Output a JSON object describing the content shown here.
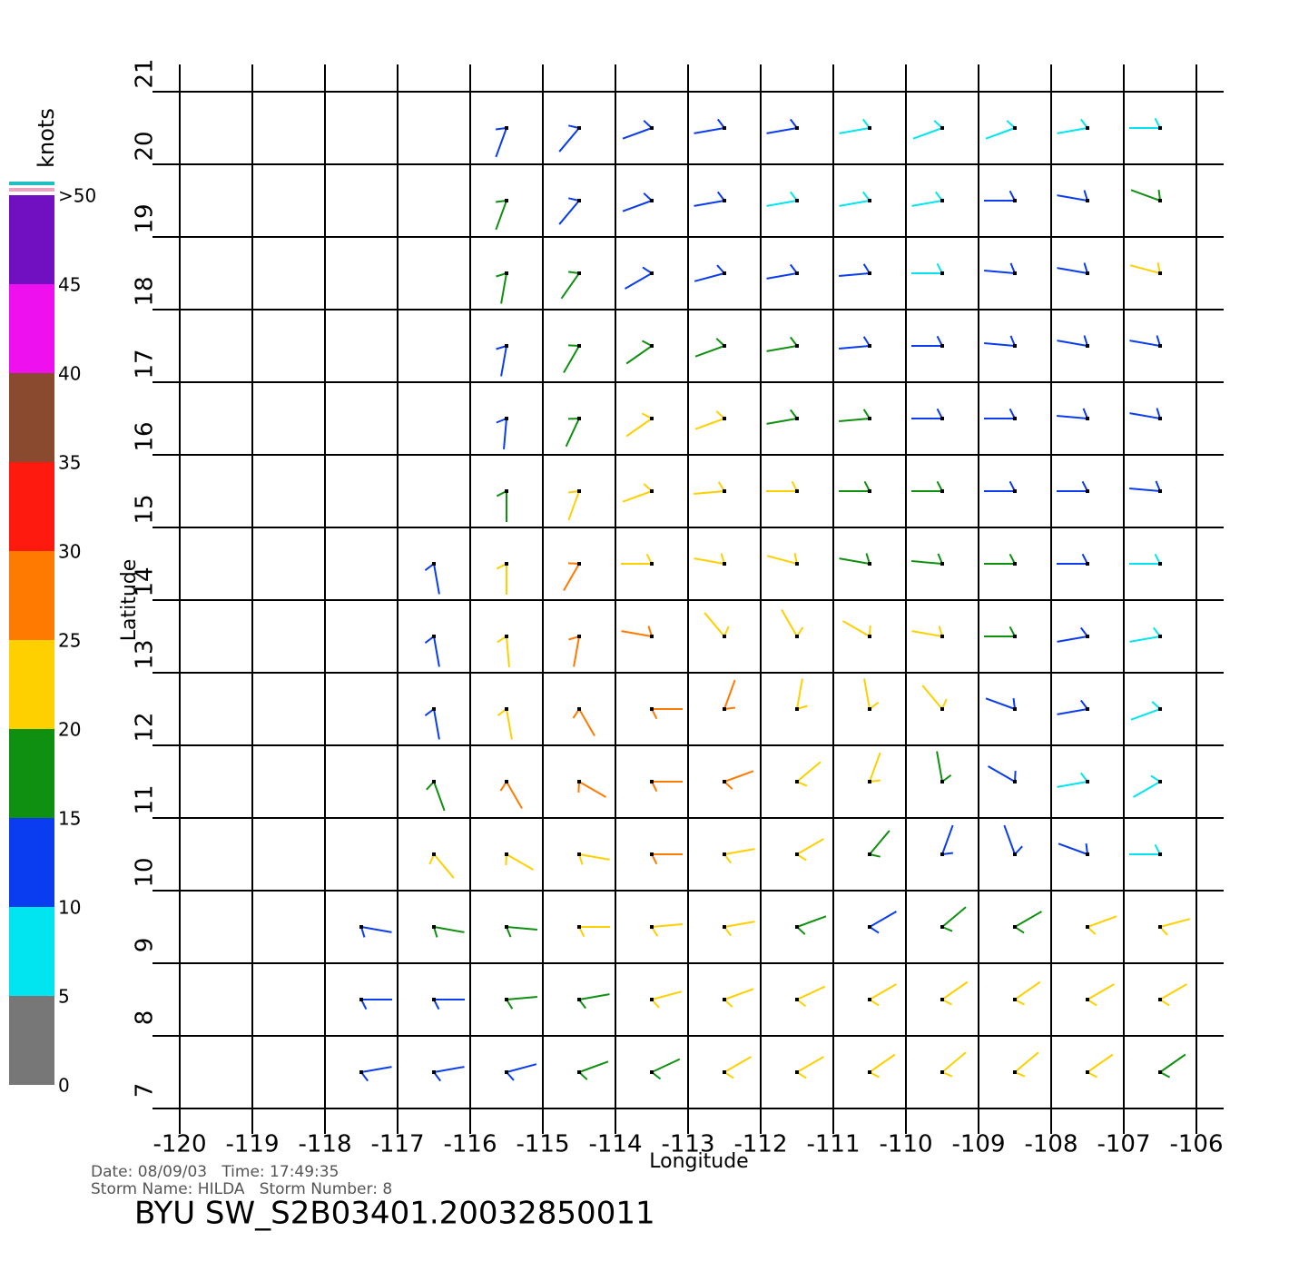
{
  "chart_data": {
    "type": "wind-barb",
    "x_label": "Longitude",
    "y_label": "Latitude",
    "xlim": [
      -120,
      -106
    ],
    "ylim": [
      7,
      21
    ],
    "xticks": [
      -120,
      -119,
      -118,
      -117,
      -116,
      -115,
      -114,
      -113,
      -112,
      -111,
      -110,
      -109,
      -108,
      -107,
      -106
    ],
    "yticks": [
      7,
      8,
      9,
      10,
      11,
      12,
      13,
      14,
      15,
      16,
      17,
      18,
      19,
      20,
      21
    ],
    "grid": true,
    "colorbar": {
      "label": "knots",
      "lim": [
        0,
        50
      ],
      "ticks": [
        0,
        5,
        10,
        15,
        20,
        25,
        30,
        35,
        40,
        45,
        {
          "value": 50,
          "label": ">50"
        }
      ],
      "colors": [
        "#777777",
        "#00e5f0",
        "#0a3cf0",
        "#109010",
        "#ffd000",
        "#ff7a00",
        "#ff1a10",
        "#8a4a30",
        "#ee10ee",
        "#7010c0"
      ]
    },
    "wind": {
      "lon": [
        -117.5,
        -116.5,
        -115.5,
        -114.5,
        -113.5,
        -112.5,
        -111.5,
        -110.5,
        -109.5,
        -108.5,
        -107.5,
        -106.5
      ],
      "lat": [
        20.5,
        19.5,
        18.5,
        17.5,
        16.5,
        15.5,
        14.5,
        13.5,
        12.5,
        11.5,
        10.5,
        9.5,
        8.5,
        7.5
      ],
      "speed": [
        [
          null,
          null,
          12,
          12,
          11,
          10,
          10,
          9,
          8,
          7,
          6,
          6
        ],
        [
          null,
          null,
          15,
          13,
          11,
          10,
          9,
          8,
          9,
          10,
          12,
          18
        ],
        [
          null,
          null,
          16,
          15,
          14,
          12,
          10,
          10,
          9,
          10,
          14,
          22
        ],
        [
          null,
          null,
          14,
          16,
          18,
          17,
          15,
          12,
          11,
          12,
          11,
          14
        ],
        [
          null,
          null,
          12,
          18,
          22,
          21,
          18,
          15,
          14,
          12,
          10,
          11
        ],
        [
          null,
          null,
          16,
          20,
          23,
          22,
          20,
          16,
          15,
          13,
          11,
          10
        ],
        [
          null,
          13,
          22,
          27,
          24,
          22,
          20,
          18,
          16,
          17,
          12,
          9
        ],
        [
          null,
          13,
          24,
          28,
          25,
          23,
          22,
          21,
          20,
          16,
          11,
          8
        ],
        [
          null,
          14,
          24,
          29,
          28,
          27,
          24,
          22,
          20,
          14,
          10,
          7
        ],
        [
          null,
          17,
          26,
          29,
          29,
          28,
          24,
          20,
          17,
          12,
          9,
          7
        ],
        [
          null,
          20,
          22,
          24,
          26,
          24,
          20,
          16,
          13,
          11,
          10,
          8
        ],
        [
          12,
          15,
          18,
          20,
          22,
          20,
          17,
          14,
          16,
          19,
          21,
          22
        ],
        [
          12,
          13,
          16,
          18,
          20,
          21,
          22,
          22,
          22,
          21,
          21,
          20
        ],
        [
          12,
          13,
          14,
          17,
          19,
          21,
          22,
          22,
          22,
          21,
          20,
          19
        ]
      ],
      "direction": [
        [
          null,
          null,
          200,
          220,
          250,
          260,
          260,
          260,
          250,
          250,
          260,
          270
        ],
        [
          null,
          null,
          200,
          220,
          250,
          260,
          260,
          260,
          260,
          270,
          280,
          290
        ],
        [
          null,
          null,
          190,
          215,
          240,
          255,
          260,
          265,
          270,
          275,
          280,
          285
        ],
        [
          null,
          null,
          190,
          210,
          235,
          250,
          260,
          265,
          270,
          275,
          280,
          280
        ],
        [
          null,
          null,
          185,
          205,
          235,
          250,
          260,
          265,
          270,
          270,
          275,
          280
        ],
        [
          null,
          null,
          180,
          200,
          250,
          265,
          270,
          270,
          270,
          270,
          270,
          275
        ],
        [
          null,
          170,
          180,
          210,
          270,
          280,
          285,
          280,
          275,
          270,
          270,
          270
        ],
        [
          null,
          170,
          175,
          190,
          280,
          320,
          330,
          300,
          280,
          270,
          260,
          260
        ],
        [
          null,
          170,
          170,
          150,
          90,
          20,
          10,
          350,
          320,
          290,
          260,
          250
        ],
        [
          null,
          160,
          150,
          120,
          90,
          70,
          50,
          20,
          350,
          300,
          260,
          240
        ],
        [
          null,
          140,
          120,
          100,
          90,
          80,
          60,
          40,
          20,
          340,
          290,
          270
        ],
        [
          100,
          100,
          95,
          90,
          85,
          80,
          70,
          60,
          50,
          60,
          70,
          75
        ],
        [
          90,
          90,
          85,
          80,
          75,
          70,
          65,
          60,
          55,
          55,
          60,
          60
        ],
        [
          80,
          80,
          75,
          70,
          65,
          60,
          60,
          55,
          50,
          50,
          55,
          55
        ]
      ]
    },
    "footer": {
      "date_line": "Date: 08/09/03   Time: 17:49:35",
      "storm_line": "Storm Name: HILDA   Storm Number: 8",
      "file_name": "BYU SW_S2B03401.20032850011"
    }
  }
}
